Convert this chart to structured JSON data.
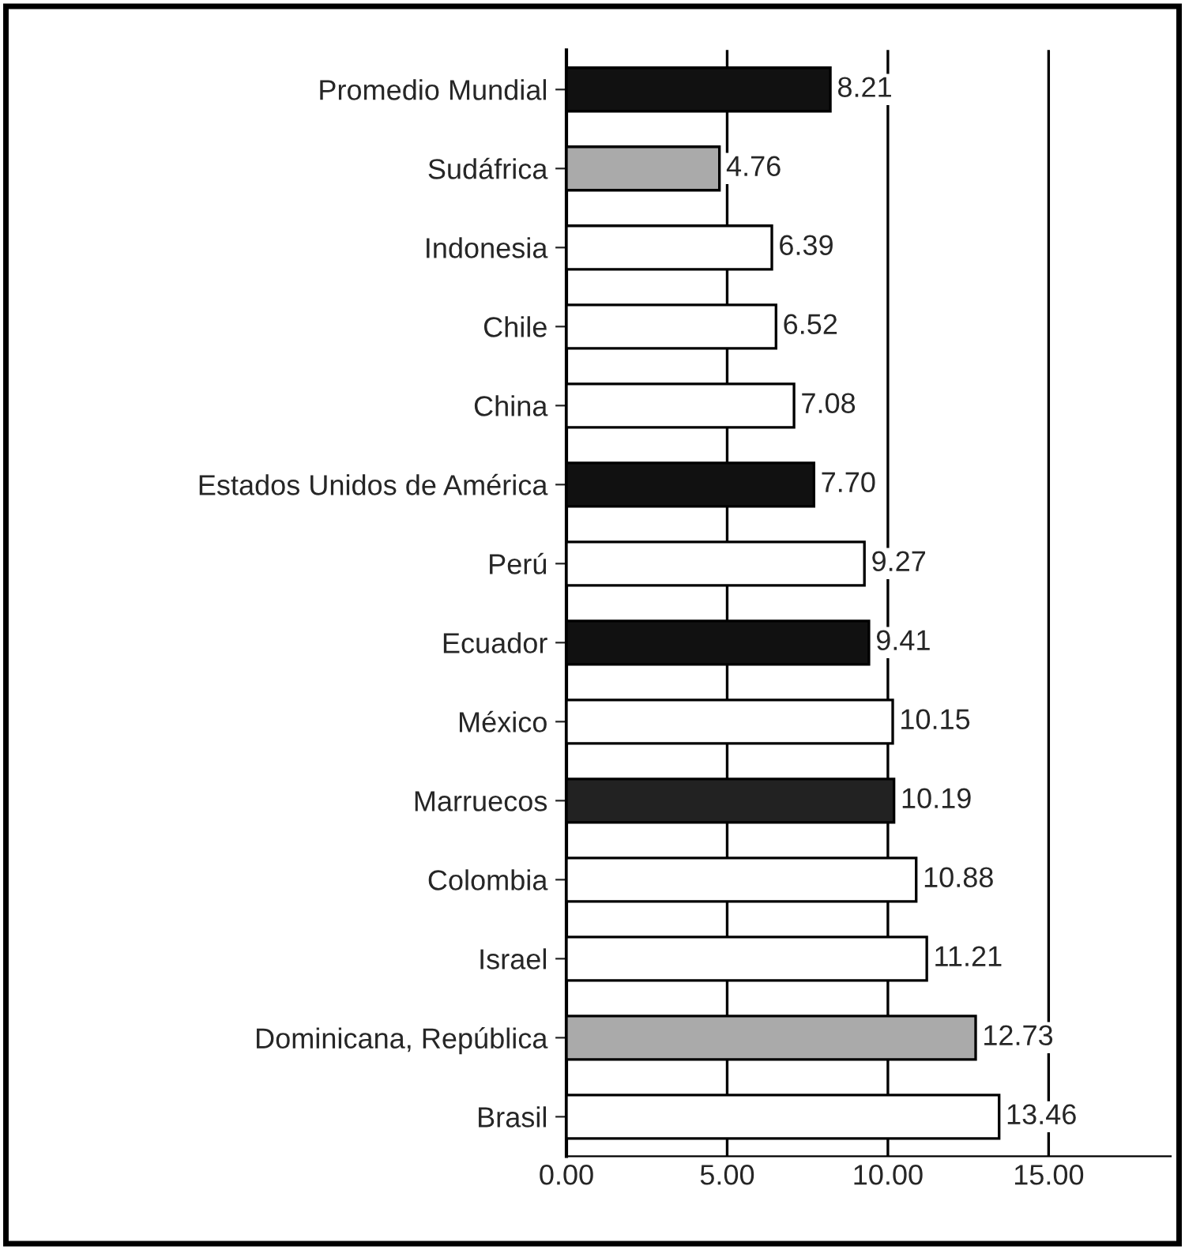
{
  "chart_data": {
    "type": "bar",
    "orientation": "horizontal",
    "categories": [
      "Promedio Mundial",
      "Sudáfrica",
      "Indonesia",
      "Chile",
      "China",
      "Estados Unidos de América",
      "Perú",
      "Ecuador",
      "México",
      "Marruecos",
      "Colombia",
      "Israel",
      "Dominicana, República",
      "Brasil"
    ],
    "values": [
      8.21,
      4.76,
      6.39,
      6.52,
      7.08,
      7.7,
      9.27,
      9.41,
      10.15,
      10.19,
      10.88,
      11.21,
      12.73,
      13.46
    ],
    "value_labels": [
      "8.21",
      "4.76",
      "6.39",
      "6.52",
      "7.08",
      "7.70",
      "9.27",
      "9.41",
      "10.15",
      "10.19",
      "10.88",
      "11.21",
      "12.73",
      "13.46"
    ],
    "colors": [
      "#111111",
      "#aaaaaa",
      "#ffffff",
      "#ffffff",
      "#ffffff",
      "#111111",
      "#ffffff",
      "#111111",
      "#ffffff",
      "#222222",
      "#ffffff",
      "#ffffff",
      "#aaaaaa",
      "#ffffff"
    ],
    "xlim": [
      0,
      18.8
    ],
    "xticks": [
      {
        "value": 0,
        "label": "0.00"
      },
      {
        "value": 5,
        "label": "5.00"
      },
      {
        "value": 10,
        "label": "10.00"
      },
      {
        "value": 15,
        "label": "15.00"
      }
    ],
    "grid": "x",
    "legend": false
  }
}
